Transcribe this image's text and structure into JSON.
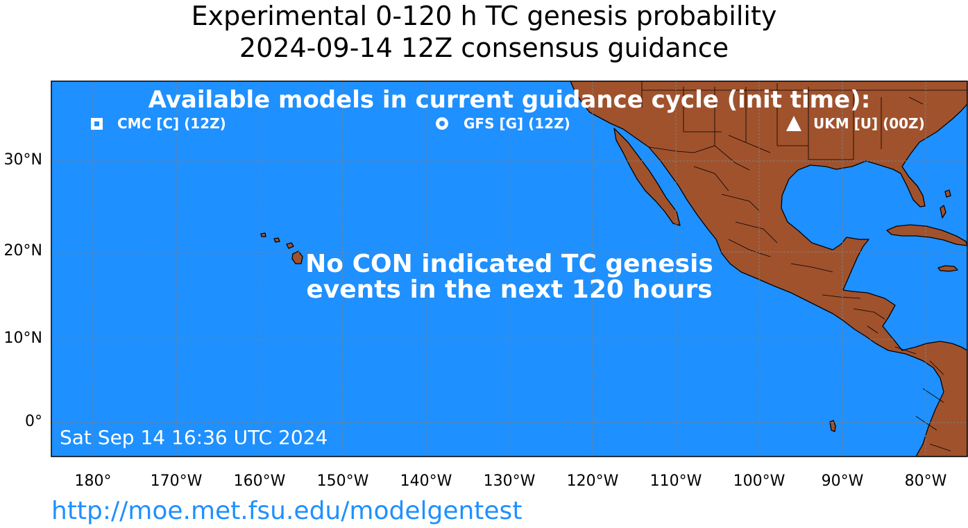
{
  "title": {
    "line1": "Experimental 0-120 h TC genesis probability",
    "line2": "2024-09-14 12Z consensus guidance"
  },
  "models": {
    "heading": "Available models in current guidance cycle (init time):",
    "items": [
      {
        "symbol": "square",
        "label": "CMC [C] (12Z)"
      },
      {
        "symbol": "circle",
        "label": "GFS [G] (12Z)"
      },
      {
        "symbol": "triangle",
        "label": "UKM [U] (00Z)"
      }
    ]
  },
  "message": {
    "line1": "No CON indicated TC genesis",
    "line2": "events in the next 120 hours"
  },
  "timestamp": "Sat Sep 14 16:36 UTC 2024",
  "url": "http://moe.met.fsu.edu/modelgentest",
  "axes": {
    "lat_ticks": [
      "30°N",
      "20°N",
      "10°N",
      "0°"
    ],
    "lon_ticks": [
      "180°",
      "170°W",
      "160°W",
      "150°W",
      "140°W",
      "130°W",
      "120°W",
      "110°W",
      "100°W",
      "90°W",
      "80°W"
    ]
  },
  "colors": {
    "ocean": "#1e90ff",
    "land": "#a0522d",
    "grid": "#808080",
    "url": "#1e90ff"
  }
}
